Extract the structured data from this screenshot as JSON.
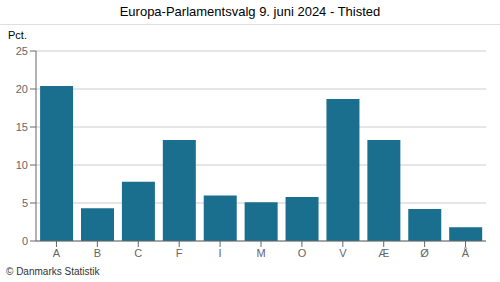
{
  "chart_data": {
    "type": "bar",
    "title": "Europa-Parlamentsvalg 9. juni 2024 - Thisted",
    "ylabel": "Pct.",
    "annotations": [
      "© Danmarks Statistik"
    ],
    "categories": [
      "A",
      "B",
      "C",
      "F",
      "I",
      "M",
      "O",
      "V",
      "Æ",
      "Ø",
      "Å"
    ],
    "values": [
      20.4,
      4.3,
      7.8,
      13.3,
      6.0,
      5.1,
      5.8,
      18.7,
      13.3,
      4.2,
      1.8
    ],
    "color": "#1a6e8e",
    "ylim": [
      0,
      25
    ],
    "yticks": [
      0,
      5,
      10,
      15,
      20,
      25
    ],
    "grid": true
  }
}
